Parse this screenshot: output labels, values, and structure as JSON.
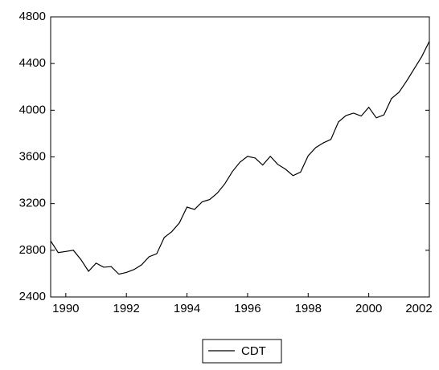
{
  "chart_data": {
    "type": "line",
    "x": [
      1989.5,
      1989.75,
      1990,
      1990.25,
      1990.5,
      1990.75,
      1991,
      1991.25,
      1991.5,
      1991.75,
      1992,
      1992.25,
      1992.5,
      1992.75,
      1993,
      1993.25,
      1993.5,
      1993.75,
      1994,
      1994.25,
      1994.5,
      1994.75,
      1995,
      1995.25,
      1995.5,
      1995.75,
      1996,
      1996.25,
      1996.5,
      1996.75,
      1997,
      1997.25,
      1997.5,
      1997.75,
      1998,
      1998.25,
      1998.5,
      1998.75,
      1999,
      1999.25,
      1999.5,
      1999.75,
      2000,
      2000.25,
      2000.5,
      2000.75,
      2001,
      2001.25,
      2001.5,
      2001.75,
      2002
    ],
    "series": [
      {
        "name": "CDT",
        "color": "#000000",
        "values": [
          2880,
          2780,
          2790,
          2800,
          2720,
          2620,
          2690,
          2655,
          2660,
          2595,
          2610,
          2635,
          2675,
          2745,
          2770,
          2910,
          2960,
          3035,
          3170,
          3150,
          3215,
          3235,
          3290,
          3370,
          3475,
          3555,
          3605,
          3590,
          3530,
          3605,
          3535,
          3495,
          3440,
          3470,
          3610,
          3680,
          3720,
          3750,
          3900,
          3955,
          3975,
          3950,
          4025,
          3935,
          3960,
          4100,
          4155,
          4250,
          4355,
          4460,
          4590
        ]
      }
    ],
    "xlim": [
      1989.5,
      2002
    ],
    "xticks": [
      1990,
      1992,
      1994,
      1996,
      1998,
      2000,
      2002
    ],
    "ylim": [
      2400,
      4800
    ],
    "yticks": [
      2400,
      2800,
      3200,
      3600,
      4000,
      4400,
      4800
    ],
    "grid": false
  }
}
